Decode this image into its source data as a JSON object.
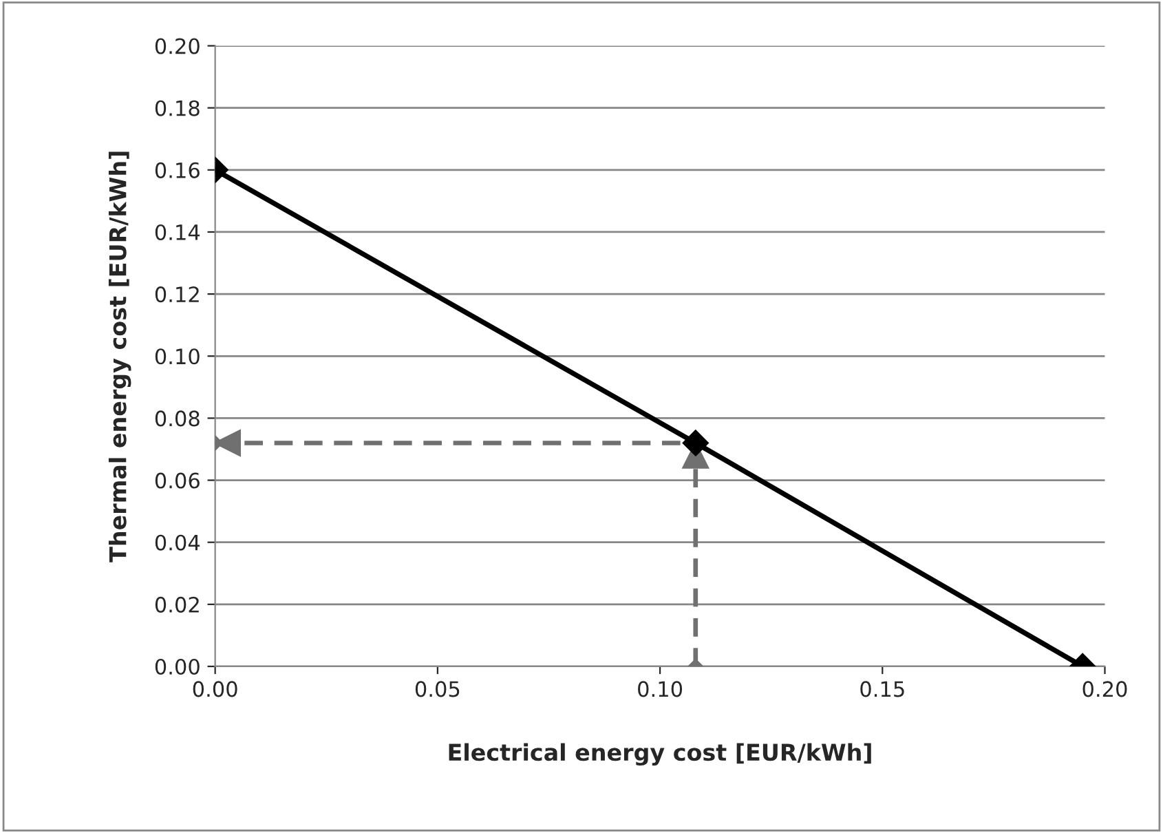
{
  "chart_data": {
    "type": "line",
    "xlabel": "Electrical energy cost [EUR/kWh]",
    "ylabel": "Thermal energy cost [EUR/kWh]",
    "series": [
      {
        "color": "#000000",
        "x": [
          0,
          0.108,
          0.195
        ],
        "values": [
          0.16,
          0.072,
          0
        ],
        "marker": "diamond",
        "line_style": "solid"
      },
      {
        "color": "#707070",
        "x": [
          0.108,
          0.108,
          0
        ],
        "values": [
          0,
          0.072,
          0.072
        ],
        "marker": "diamond",
        "line_style": "dashed"
      }
    ],
    "xlim": [
      0,
      0.2
    ],
    "xticks": [
      {
        "value": 0,
        "label": "0.00"
      },
      {
        "value": 0.05,
        "label": "0.05"
      },
      {
        "value": 0.1,
        "label": "0.10"
      },
      {
        "value": 0.15,
        "label": "0.15"
      },
      {
        "value": 0.2,
        "label": "0.20"
      }
    ],
    "ylim": [
      0,
      0.2
    ],
    "yticks": [
      {
        "value": 0,
        "label": "0.00"
      },
      {
        "value": 0.02,
        "label": "0.02"
      },
      {
        "value": 0.04,
        "label": "0.04"
      },
      {
        "value": 0.06,
        "label": "0.06"
      },
      {
        "value": 0.08,
        "label": "0.08"
      },
      {
        "value": 0.1,
        "label": "0.10"
      },
      {
        "value": 0.12,
        "label": "0.12"
      },
      {
        "value": 0.14,
        "label": "0.14"
      },
      {
        "value": 0.16,
        "label": "0.16"
      },
      {
        "value": 0.18,
        "label": "0.18"
      },
      {
        "value": 0.2,
        "label": "0.20"
      }
    ],
    "grid": "y",
    "legend": false
  }
}
